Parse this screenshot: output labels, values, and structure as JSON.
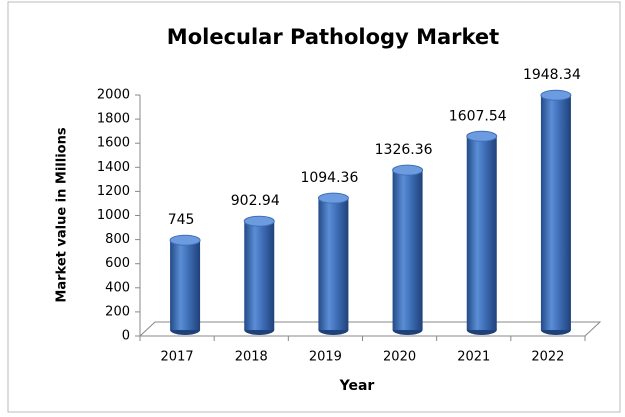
{
  "chart_data": {
    "type": "bar",
    "title": "Molecular Pathology Market",
    "x_label": "Year",
    "y_label": "Market value in Millions",
    "categories": [
      "2017",
      "2018",
      "2019",
      "2020",
      "2021",
      "2022"
    ],
    "values": [
      745,
      902.94,
      1094.36,
      1326.36,
      1607.54,
      1948.34
    ],
    "color": "#3f6fb8",
    "ylim": [
      0,
      2000
    ],
    "yticks": [
      0,
      200,
      400,
      600,
      800,
      1000,
      1200,
      1400,
      1600,
      1800,
      2000
    ],
    "grid": false
  }
}
